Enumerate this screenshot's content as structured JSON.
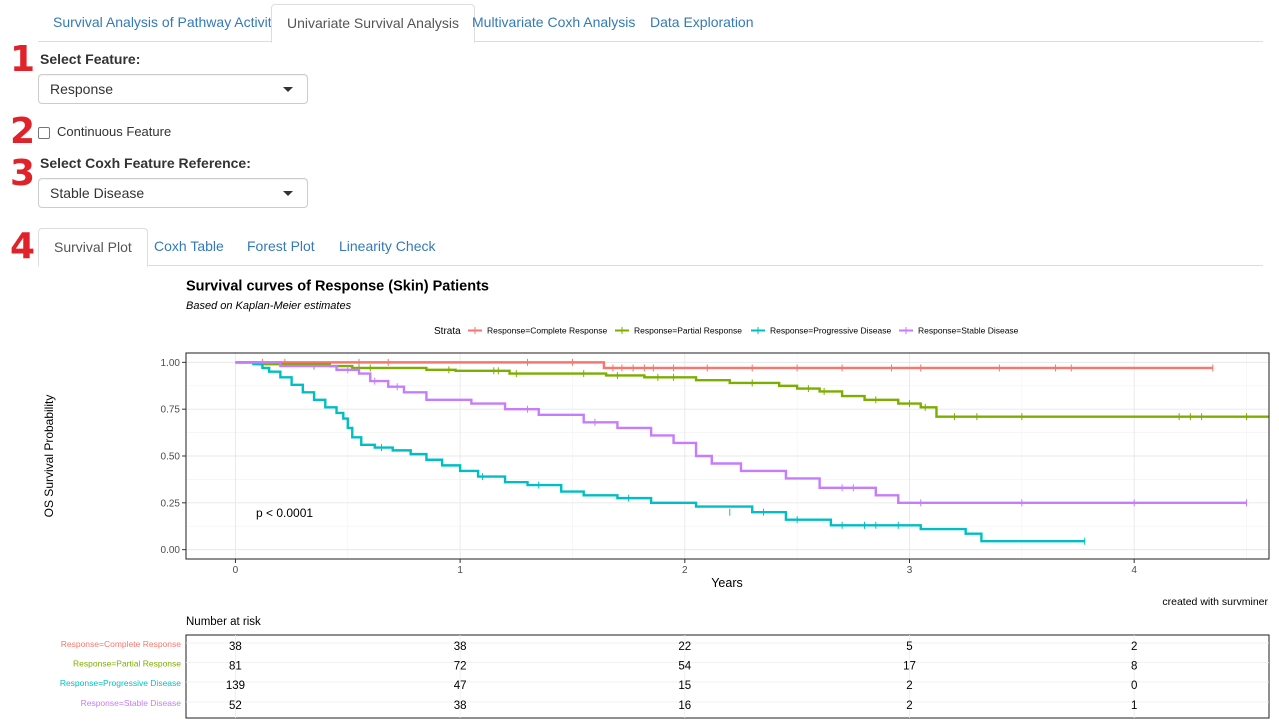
{
  "tabs": [
    {
      "label": "Survival Analysis of Pathway Activity",
      "active": false
    },
    {
      "label": "Univariate Survival Analysis",
      "active": true
    },
    {
      "label": "Multivariate Coxh Analysis",
      "active": false
    },
    {
      "label": "Data Exploration",
      "active": false
    }
  ],
  "markers": [
    "1",
    "2",
    "3",
    "4"
  ],
  "feature": {
    "label": "Select Feature:",
    "value": "Response"
  },
  "continuous": {
    "label": "Continuous Feature",
    "checked": false
  },
  "reference": {
    "label": "Select Coxh Feature Reference:",
    "value": "Stable Disease"
  },
  "subtabs": [
    {
      "label": "Survival Plot",
      "active": true
    },
    {
      "label": "Coxh Table",
      "active": false
    },
    {
      "label": "Forest Plot",
      "active": false
    },
    {
      "label": "Linearity Check",
      "active": false
    }
  ],
  "chart_data": {
    "type": "line",
    "subtype": "kaplan-meier step",
    "title": "Survival curves of Response (Skin) Patients",
    "subtitle": "Based on Kaplan-Meier estimates",
    "xlabel": "Years",
    "ylabel": "OS Survival Probability",
    "xlim": [
      -0.22,
      4.6
    ],
    "ylim": [
      -0.05,
      1.05
    ],
    "xticks": [
      0,
      1,
      2,
      3,
      4
    ],
    "yticks": [
      0,
      0.25,
      0.5,
      0.75,
      1
    ],
    "ytick_labels": [
      "0.00",
      "0.25",
      "0.50",
      "0.75",
      "1.00"
    ],
    "legend_title": "Strata",
    "legend_position": "top",
    "pvalue": "p < 0.0001",
    "caption": "created with survminer",
    "series": [
      {
        "name": "Response=Complete Response",
        "color": "#f8766d",
        "steps": [
          [
            0,
            1.0
          ],
          [
            1.64,
            0.97
          ],
          [
            4.35,
            0.97
          ]
        ],
        "censors": [
          [
            0.12,
            1.0
          ],
          [
            0.22,
            1.0
          ],
          [
            0.55,
            1.0
          ],
          [
            0.68,
            1.0
          ],
          [
            1.3,
            1.0
          ],
          [
            1.5,
            1.0
          ],
          [
            1.68,
            0.97
          ],
          [
            1.72,
            0.97
          ],
          [
            1.77,
            0.97
          ],
          [
            1.82,
            0.97
          ],
          [
            1.86,
            0.97
          ],
          [
            1.95,
            0.97
          ],
          [
            2.1,
            0.97
          ],
          [
            2.3,
            0.97
          ],
          [
            2.5,
            0.97
          ],
          [
            2.7,
            0.97
          ],
          [
            2.92,
            0.97
          ],
          [
            3.05,
            0.97
          ],
          [
            3.4,
            0.97
          ],
          [
            3.65,
            0.97
          ],
          [
            3.72,
            0.97
          ],
          [
            4.35,
            0.97
          ]
        ]
      },
      {
        "name": "Response=Partial Response",
        "color": "#7cae00",
        "steps": [
          [
            0,
            1.0
          ],
          [
            0.1,
            0.99
          ],
          [
            0.42,
            0.98
          ],
          [
            0.52,
            0.97
          ],
          [
            0.85,
            0.96
          ],
          [
            0.98,
            0.955
          ],
          [
            1.22,
            0.94
          ],
          [
            1.65,
            0.93
          ],
          [
            1.82,
            0.92
          ],
          [
            2.05,
            0.905
          ],
          [
            2.2,
            0.89
          ],
          [
            2.42,
            0.875
          ],
          [
            2.5,
            0.86
          ],
          [
            2.6,
            0.845
          ],
          [
            2.7,
            0.82
          ],
          [
            2.8,
            0.8
          ],
          [
            2.95,
            0.78
          ],
          [
            3.05,
            0.76
          ],
          [
            3.12,
            0.71
          ],
          [
            4.6,
            0.71
          ]
        ],
        "censors": [
          [
            0.35,
            0.98
          ],
          [
            0.55,
            0.97
          ],
          [
            0.6,
            0.97
          ],
          [
            0.95,
            0.96
          ],
          [
            1.15,
            0.955
          ],
          [
            1.17,
            0.955
          ],
          [
            1.25,
            0.94
          ],
          [
            1.55,
            0.94
          ],
          [
            1.7,
            0.93
          ],
          [
            1.88,
            0.92
          ],
          [
            1.95,
            0.92
          ],
          [
            2.3,
            0.89
          ],
          [
            2.55,
            0.86
          ],
          [
            2.62,
            0.845
          ],
          [
            2.85,
            0.8
          ],
          [
            3.0,
            0.78
          ],
          [
            3.07,
            0.76
          ],
          [
            3.2,
            0.71
          ],
          [
            3.3,
            0.71
          ],
          [
            3.5,
            0.71
          ],
          [
            4.2,
            0.71
          ],
          [
            4.25,
            0.71
          ],
          [
            4.3,
            0.71
          ],
          [
            4.5,
            0.71
          ]
        ]
      },
      {
        "name": "Response=Progressive Disease",
        "color": "#00bfc4",
        "steps": [
          [
            0,
            1.0
          ],
          [
            0.08,
            0.99
          ],
          [
            0.12,
            0.97
          ],
          [
            0.15,
            0.95
          ],
          [
            0.2,
            0.92
          ],
          [
            0.25,
            0.88
          ],
          [
            0.3,
            0.84
          ],
          [
            0.35,
            0.8
          ],
          [
            0.4,
            0.76
          ],
          [
            0.45,
            0.73
          ],
          [
            0.48,
            0.7
          ],
          [
            0.5,
            0.65
          ],
          [
            0.52,
            0.6
          ],
          [
            0.56,
            0.56
          ],
          [
            0.62,
            0.545
          ],
          [
            0.7,
            0.53
          ],
          [
            0.78,
            0.51
          ],
          [
            0.85,
            0.48
          ],
          [
            0.92,
            0.45
          ],
          [
            1.0,
            0.42
          ],
          [
            1.08,
            0.39
          ],
          [
            1.2,
            0.36
          ],
          [
            1.3,
            0.345
          ],
          [
            1.45,
            0.31
          ],
          [
            1.55,
            0.29
          ],
          [
            1.7,
            0.275
          ],
          [
            1.85,
            0.25
          ],
          [
            2.05,
            0.23
          ],
          [
            2.3,
            0.2
          ],
          [
            2.45,
            0.16
          ],
          [
            2.65,
            0.13
          ],
          [
            3.05,
            0.11
          ],
          [
            3.25,
            0.085
          ],
          [
            3.32,
            0.045
          ],
          [
            3.78,
            0.045
          ]
        ],
        "censors": [
          [
            0.65,
            0.545
          ],
          [
            1.1,
            0.39
          ],
          [
            1.35,
            0.345
          ],
          [
            1.75,
            0.275
          ],
          [
            2.2,
            0.2
          ],
          [
            2.35,
            0.2
          ],
          [
            2.5,
            0.16
          ],
          [
            2.7,
            0.13
          ],
          [
            2.8,
            0.13
          ],
          [
            2.85,
            0.13
          ],
          [
            2.95,
            0.13
          ],
          [
            3.78,
            0.045
          ]
        ]
      },
      {
        "name": "Response=Stable Disease",
        "color": "#c77cff",
        "steps": [
          [
            0,
            1.0
          ],
          [
            0.2,
            0.98
          ],
          [
            0.45,
            0.96
          ],
          [
            0.55,
            0.94
          ],
          [
            0.6,
            0.9
          ],
          [
            0.68,
            0.87
          ],
          [
            0.75,
            0.84
          ],
          [
            0.85,
            0.8
          ],
          [
            1.05,
            0.78
          ],
          [
            1.2,
            0.75
          ],
          [
            1.35,
            0.72
          ],
          [
            1.55,
            0.68
          ],
          [
            1.7,
            0.65
          ],
          [
            1.85,
            0.61
          ],
          [
            1.95,
            0.57
          ],
          [
            2.05,
            0.5
          ],
          [
            2.12,
            0.46
          ],
          [
            2.25,
            0.42
          ],
          [
            2.45,
            0.38
          ],
          [
            2.6,
            0.33
          ],
          [
            2.85,
            0.29
          ],
          [
            2.95,
            0.25
          ],
          [
            4.5,
            0.25
          ]
        ],
        "censors": [
          [
            0.5,
            0.96
          ],
          [
            0.62,
            0.9
          ],
          [
            0.72,
            0.87
          ],
          [
            1.3,
            0.75
          ],
          [
            1.6,
            0.68
          ],
          [
            2.7,
            0.33
          ],
          [
            2.75,
            0.33
          ],
          [
            3.05,
            0.25
          ],
          [
            3.5,
            0.25
          ],
          [
            4.0,
            0.25
          ],
          [
            4.5,
            0.25
          ]
        ]
      }
    ],
    "risk_table": {
      "title": "Number at risk",
      "times": [
        0,
        1,
        2,
        3,
        4
      ],
      "rows": [
        {
          "label": "Response=Complete Response",
          "color": "#f8766d",
          "values": [
            "38",
            "38",
            "22",
            "5",
            "2"
          ]
        },
        {
          "label": "Response=Partial Response",
          "color": "#7cae00",
          "values": [
            "81",
            "72",
            "54",
            "17",
            "8"
          ]
        },
        {
          "label": "Response=Progressive Disease",
          "color": "#00bfc4",
          "values": [
            "139",
            "47",
            "15",
            "2",
            "0"
          ]
        },
        {
          "label": "Response=Stable Disease",
          "color": "#c77cff",
          "values": [
            "52",
            "38",
            "16",
            "2",
            "1"
          ]
        }
      ]
    }
  }
}
